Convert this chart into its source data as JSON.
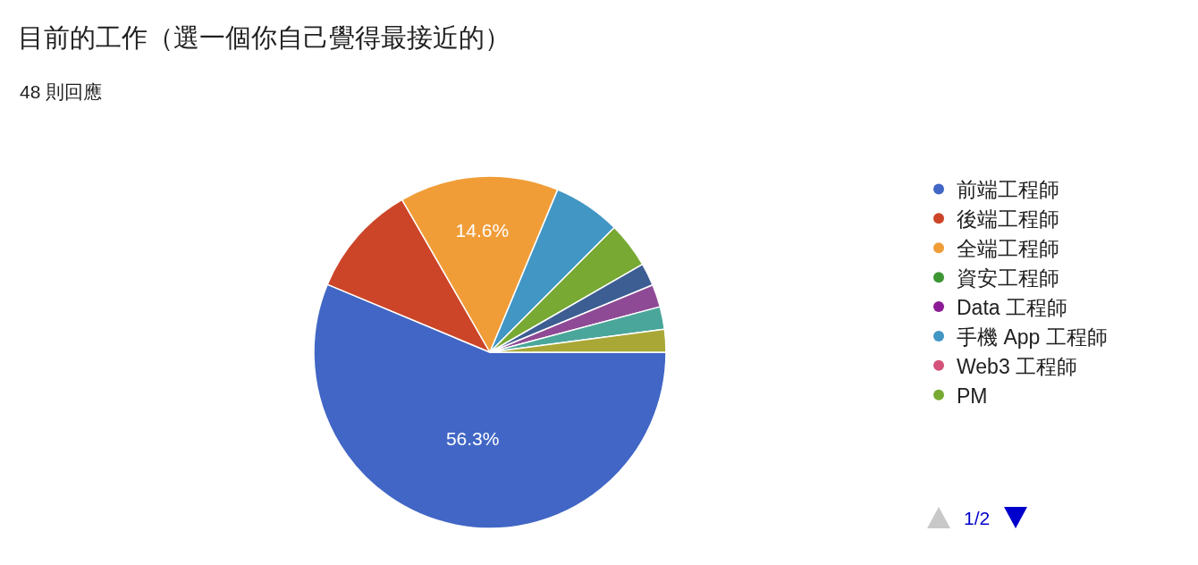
{
  "chart_data": {
    "type": "pie",
    "title": "目前的工作（選一個你自己覺得最接近的）",
    "subtitle": "48 則回應",
    "categories": [
      "前端工程師",
      "後端工程師",
      "全端工程師",
      "資安工程師",
      "Data 工程師",
      "手機 App 工程師",
      "Web3 工程師",
      "PM",
      null,
      null,
      null,
      null
    ],
    "values": [
      56.3,
      10.4,
      14.6,
      0,
      0,
      6.2,
      0,
      4.2,
      2.08,
      2.08,
      2.08,
      2.08
    ],
    "value_labels": [
      "56.3%",
      null,
      "14.6%",
      null,
      null,
      null,
      null,
      null,
      null,
      null,
      null,
      null
    ],
    "colors": [
      "#4166c5",
      "#cc4528",
      "#f09d38",
      "#3d9634",
      "#8c1a94",
      "#4296c4",
      "#d4527a",
      "#77a933",
      "#3d5e93",
      "#8e4a95",
      "#4aa69a",
      "#a9a836"
    ],
    "legend": "right",
    "annotations": [
      "1/2"
    ]
  }
}
